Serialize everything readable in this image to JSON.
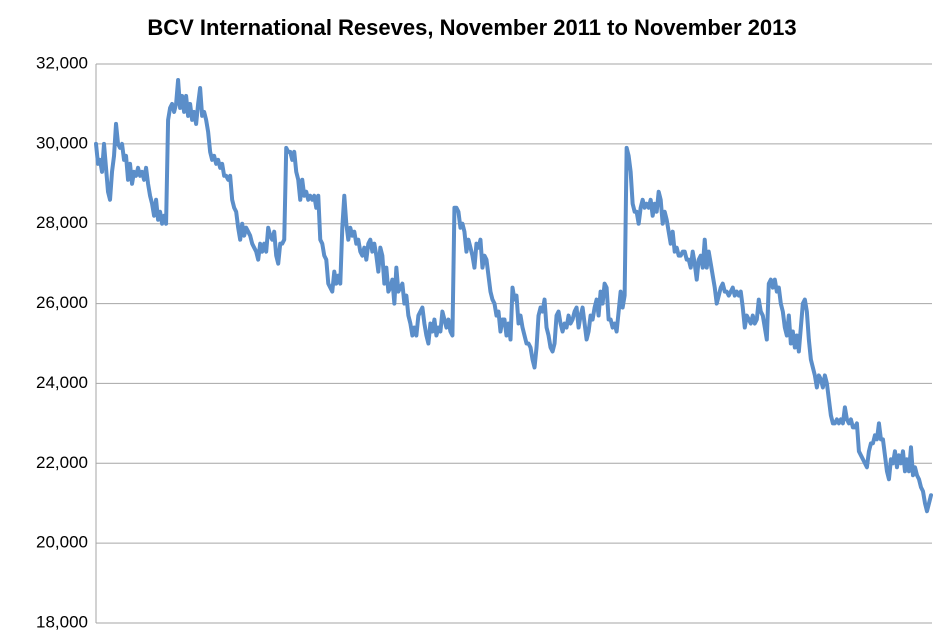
{
  "chart_data": {
    "type": "line",
    "title": "BCV International Reseves, November 2011 to November 2013",
    "series": [
      {
        "color": "#5b8ec9",
        "values": [
          30000,
          29500,
          29600,
          29300,
          30000,
          29400,
          28800,
          28600,
          29300,
          29700,
          30500,
          30000,
          29900,
          30000,
          29600,
          29700,
          29100,
          29500,
          29000,
          29300,
          29200,
          29400,
          29200,
          29300,
          29100,
          29400,
          29000,
          28700,
          28500,
          28200,
          28600,
          28100,
          28300,
          28000,
          28200,
          28000,
          30600,
          30900,
          31000,
          30800,
          31000,
          31600,
          30900,
          31200,
          30800,
          31200,
          30700,
          31000,
          30600,
          30800,
          30500,
          31000,
          31400,
          30700,
          30800,
          30600,
          30300,
          29800,
          29600,
          29700,
          29500,
          29600,
          29400,
          29500,
          29200,
          29200,
          29100,
          29200,
          28600,
          28400,
          28300,
          27900,
          27600,
          28000,
          27700,
          27900,
          27800,
          27700,
          27500,
          27400,
          27300,
          27100,
          27500,
          27300,
          27500,
          27300,
          27900,
          27700,
          27600,
          27800,
          27200,
          27000,
          27500,
          27500,
          27600,
          29900,
          29800,
          29800,
          29600,
          29800,
          29300,
          29100,
          28600,
          29100,
          28700,
          28800,
          28600,
          28700,
          28600,
          28700,
          28400,
          28700,
          27600,
          27500,
          27200,
          27100,
          26500,
          26400,
          26300,
          26800,
          26500,
          26700,
          26500,
          27900,
          28700,
          28000,
          27600,
          27900,
          27700,
          27800,
          27500,
          27600,
          27300,
          27200,
          27400,
          27100,
          27500,
          27600,
          27300,
          27500,
          27200,
          26800,
          27400,
          27200,
          26500,
          26900,
          26300,
          26400,
          26600,
          26000,
          26900,
          26300,
          26400,
          26500,
          26000,
          26200,
          25700,
          25500,
          25200,
          25400,
          25200,
          25700,
          25800,
          25900,
          25500,
          25200,
          25000,
          25500,
          25300,
          25600,
          25200,
          25400,
          25300,
          25800,
          25600,
          25400,
          25600,
          25300,
          25200,
          28400,
          28400,
          28300,
          27900,
          28000,
          27800,
          27300,
          27600,
          27400,
          27200,
          26900,
          27500,
          27400,
          27600,
          26900,
          27200,
          27100,
          26700,
          26300,
          26100,
          26000,
          25700,
          25800,
          25300,
          25600,
          25600,
          25200,
          25500,
          25100,
          26400,
          26100,
          26200,
          25500,
          25700,
          25400,
          25200,
          25000,
          25000,
          24900,
          24600,
          24400,
          24900,
          25700,
          25900,
          25800,
          26100,
          25400,
          25200,
          24900,
          24800,
          25000,
          25700,
          25800,
          25500,
          25300,
          25500,
          25400,
          25700,
          25500,
          25600,
          25800,
          25900,
          25400,
          25700,
          25900,
          25500,
          25100,
          25300,
          25700,
          25600,
          25900,
          26100,
          25700,
          26300,
          26000,
          26500,
          26400,
          25600,
          25600,
          25400,
          25500,
          25300,
          25800,
          26300,
          25900,
          26200,
          29900,
          29700,
          29300,
          28500,
          28300,
          28300,
          28000,
          28400,
          28600,
          28400,
          28500,
          28400,
          28600,
          28200,
          28500,
          28300,
          28800,
          28600,
          28000,
          28300,
          28100,
          27800,
          27500,
          27800,
          27300,
          27400,
          27200,
          27200,
          27300,
          27300,
          27100,
          27100,
          26900,
          27300,
          27000,
          26600,
          27100,
          27200,
          26900,
          27600,
          26900,
          27300,
          27000,
          26700,
          26400,
          26000,
          26200,
          26400,
          26500,
          26300,
          26300,
          26200,
          26300,
          26400,
          26200,
          26300,
          26200,
          26300,
          25900,
          25400,
          25700,
          25600,
          25500,
          25700,
          25500,
          25600,
          26100,
          25800,
          25700,
          25400,
          25100,
          26500,
          26600,
          26400,
          26600,
          26300,
          26400,
          26000,
          25800,
          25400,
          25200,
          25700,
          25000,
          25300,
          24900,
          25200,
          24800,
          25400,
          26000,
          26100,
          25800,
          25100,
          24600,
          24400,
          24200,
          23900,
          24200,
          24100,
          23900,
          24200,
          24000,
          23600,
          23200,
          23000,
          23000,
          23100,
          23000,
          23100,
          23000,
          23400,
          23100,
          23000,
          23100,
          22900,
          22900,
          23000,
          22300,
          22200,
          22100,
          22000,
          21900,
          22300,
          22500,
          22500,
          22700,
          22600,
          23000,
          22600,
          22600,
          22200,
          21800,
          21600,
          22100,
          22000,
          22300,
          21900,
          22200,
          22000,
          22300,
          21800,
          22100,
          21800,
          22400,
          21700,
          21900,
          21700,
          21600,
          21400,
          21300,
          21000,
          20800,
          21000,
          21200
        ]
      }
    ],
    "ylim": [
      18000,
      32000
    ],
    "yticks": [
      {
        "value": 18000,
        "label": "18,000"
      },
      {
        "value": 20000,
        "label": "20,000"
      },
      {
        "value": 22000,
        "label": "22,000"
      },
      {
        "value": 24000,
        "label": "24,000"
      },
      {
        "value": 26000,
        "label": "26,000"
      },
      {
        "value": 28000,
        "label": "28,000"
      },
      {
        "value": 30000,
        "label": "30,000"
      },
      {
        "value": 32000,
        "label": "32,000"
      }
    ],
    "grid": true
  }
}
